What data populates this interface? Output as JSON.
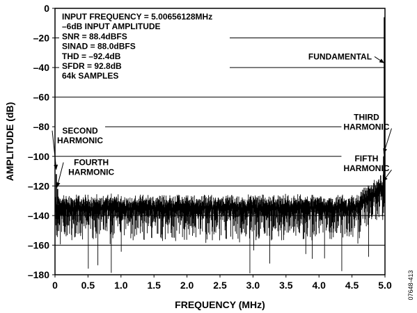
{
  "figure_id": "07648-413",
  "chart_data": {
    "type": "line",
    "xlabel": "FREQUENCY (MHz)",
    "ylabel": "AMPLITUDE (dB)",
    "xlim": [
      0,
      5.0
    ],
    "ylim": [
      -180,
      0
    ],
    "x_ticks": [
      0,
      0.5,
      1.0,
      1.5,
      2.0,
      2.5,
      3.0,
      3.5,
      4.0,
      4.5,
      5.0
    ],
    "x_tick_labels": [
      "0",
      "0.5",
      "1.0",
      "1.5",
      "2.0",
      "2.5",
      "3.0",
      "3.5",
      "4.0",
      "4.5",
      "5.0"
    ],
    "y_ticks": [
      0,
      -20,
      -40,
      -60,
      -80,
      -100,
      -120,
      -140,
      -160,
      -180
    ],
    "y_tick_labels": [
      "0",
      "–20",
      "–40",
      "–60",
      "–80",
      "–100",
      "–120",
      "–140",
      "–160",
      "–180"
    ],
    "grid": "horizontal",
    "info_lines": [
      "INPUT FREQUENCY = 5.00656128MHz",
      "–6dB INPUT AMPLITUDE",
      "SNR = 88.4dBFS",
      "SINAD = 88.0dBFS",
      "THD = –92.4dB",
      "SFDR = 92.8dB",
      "64k SAMPLES"
    ],
    "noise_floor": {
      "base_db": -132,
      "variation_db": 6,
      "dip_min_db": -180,
      "rise_start_mhz": 4.55,
      "rise_end_db": -115
    },
    "peaks": [
      {
        "label": "FUNDAMENTAL",
        "x": 4.99,
        "y": -6
      },
      {
        "label": "SECOND HARMONIC",
        "x": 0.02,
        "y": -112
      },
      {
        "label": "THIRD HARMONIC",
        "x": 4.98,
        "y": -100
      },
      {
        "label": "FOURTH HARMONIC",
        "x": 0.04,
        "y": -122
      },
      {
        "label": "FIFTH HARMONIC",
        "x": 4.97,
        "y": -118
      }
    ],
    "annotations": [
      {
        "lines": [
          "FUNDAMENTAL"
        ],
        "anchor": "end",
        "text_x": 4.8,
        "text_y": -34.5,
        "arrow_to": [
          4.99,
          -37
        ]
      },
      {
        "lines": [
          "SECOND",
          "HARMONIC"
        ],
        "anchor": "middle",
        "text_x": 0.38,
        "text_y": -84.5,
        "arrow_to": [
          0.02,
          -109
        ]
      },
      {
        "lines": [
          "THIRD",
          "HARMONIC"
        ],
        "anchor": "middle",
        "text_x": 4.72,
        "text_y": -75.5,
        "arrow_to": [
          4.98,
          -98
        ]
      },
      {
        "lines": [
          "FOURTH",
          "HARMONIC"
        ],
        "anchor": "middle",
        "text_x": 0.55,
        "text_y": -106,
        "arrow_to": [
          0.03,
          -121
        ]
      },
      {
        "lines": [
          "FIFTH",
          "HARMONIC"
        ],
        "anchor": "middle",
        "text_x": 4.72,
        "text_y": -103.5,
        "arrow_to": [
          4.97,
          -117
        ]
      }
    ]
  }
}
